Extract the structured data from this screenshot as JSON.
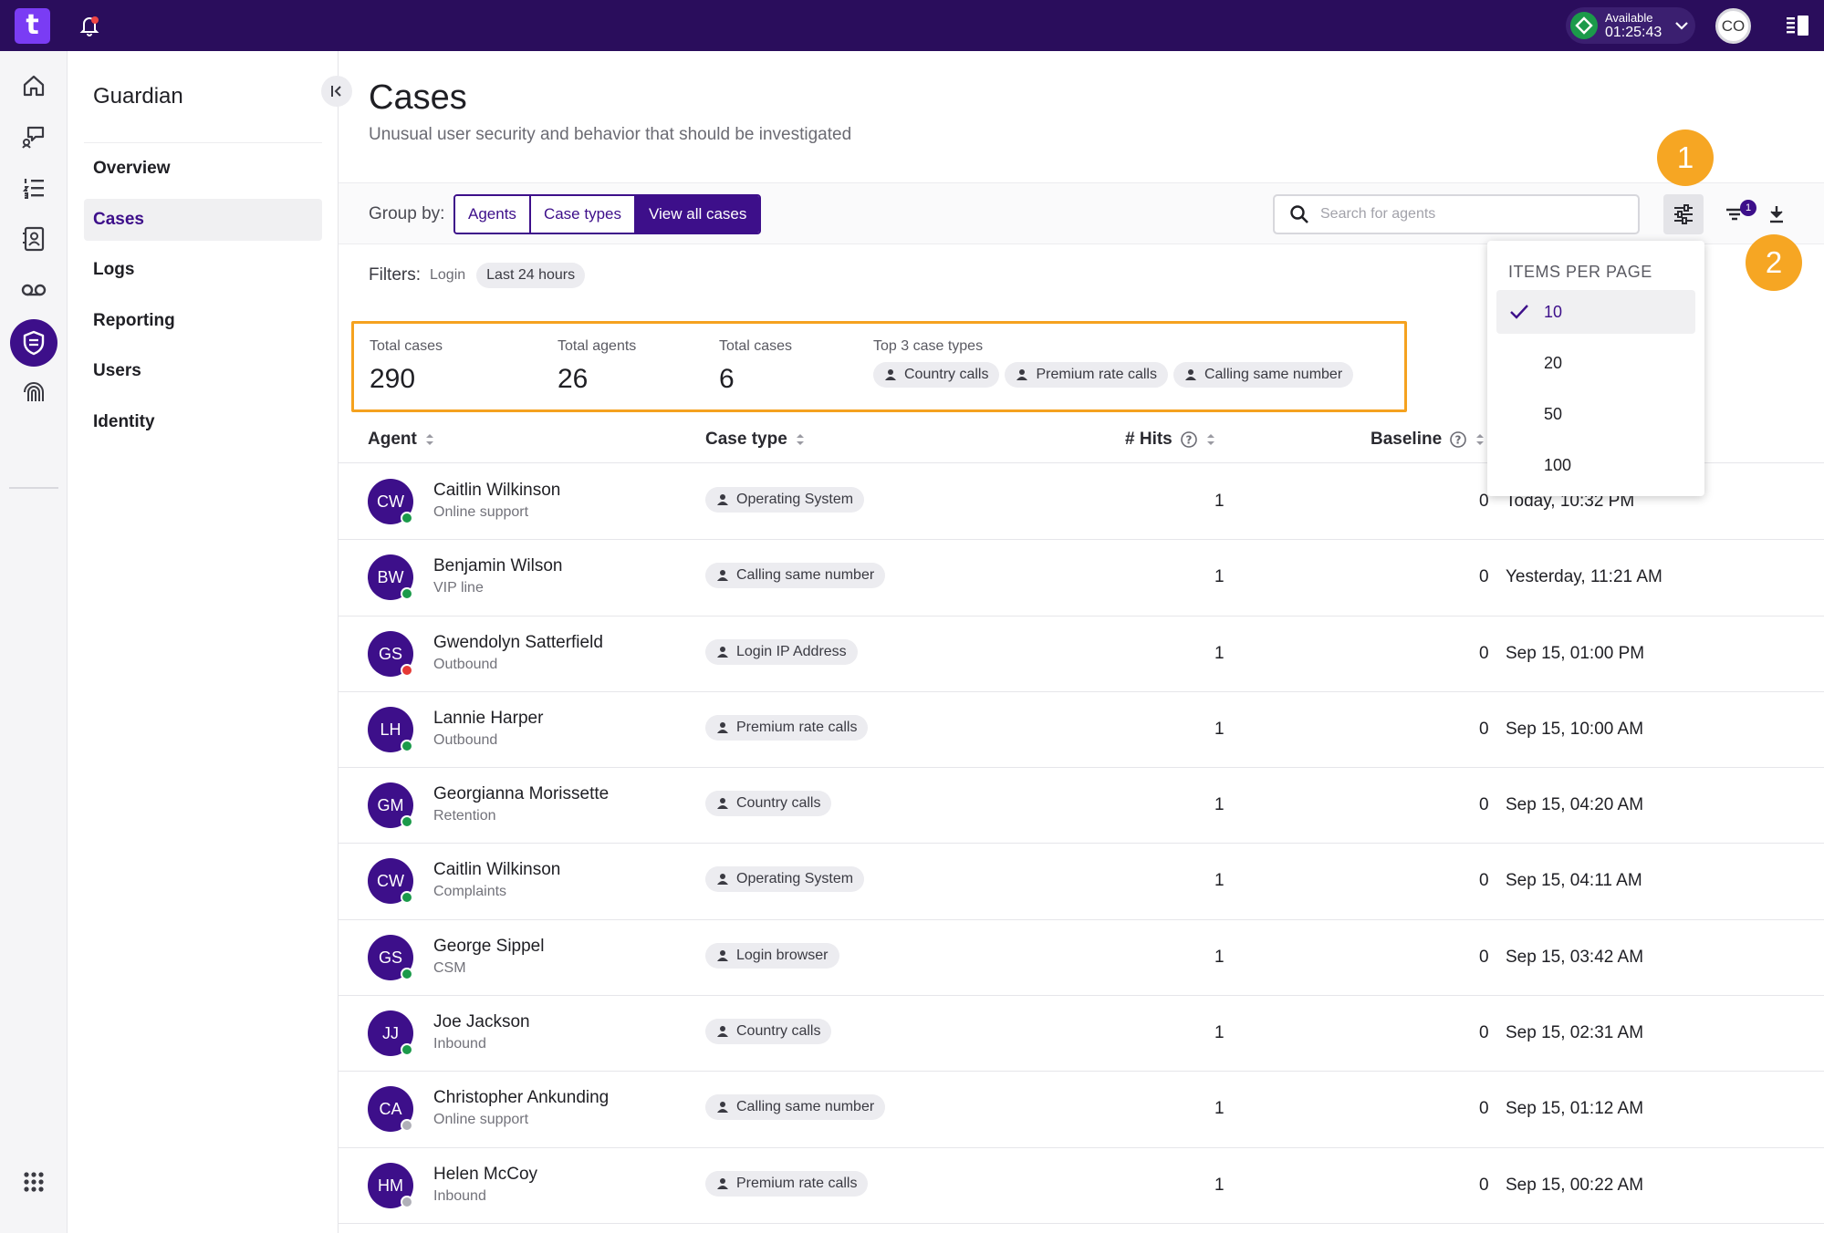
{
  "topbar": {
    "logo_text": "t",
    "status_label": "Available",
    "status_timer": "01:25:43",
    "user_initials": "CO"
  },
  "rail_icons": [
    "home-icon",
    "conversations-icon",
    "list-icon",
    "contacts-icon",
    "voicemail-icon",
    "shield-icon",
    "fingerprint-icon",
    "apps-grid-icon"
  ],
  "sidebar": {
    "title": "Guardian",
    "items": [
      {
        "label": "Overview",
        "active": false
      },
      {
        "label": "Cases",
        "active": true
      },
      {
        "label": "Logs",
        "active": false
      },
      {
        "label": "Reporting",
        "active": false
      },
      {
        "label": "Users",
        "active": false
      },
      {
        "label": "Identity",
        "active": false
      }
    ]
  },
  "page": {
    "title": "Cases",
    "subtitle": "Unusual user security and behavior that should be investigated"
  },
  "toolbar": {
    "group_by_label": "Group by:",
    "group_options": [
      "Agents",
      "Case types",
      "View all cases"
    ],
    "selected_group": "View all cases",
    "search_placeholder": "Search for agents",
    "filter_badge": "1"
  },
  "filters": {
    "label": "Filters:",
    "key": "Login",
    "chip": "Last 24 hours"
  },
  "summary": {
    "total_cases_label": "Total cases",
    "total_cases_value": "290",
    "total_agents_label": "Total agents",
    "total_agents_value": "26",
    "total_cases2_label": "Total cases",
    "total_cases2_value": "6",
    "top3_label": "Top 3 case types",
    "top3": [
      "Country calls",
      "Premium rate calls",
      "Calling same number"
    ]
  },
  "table": {
    "columns": {
      "agent": "Agent",
      "case_type": "Case type",
      "hits": "# Hits",
      "baseline": "Baseline"
    },
    "rows": [
      {
        "initials": "CW",
        "name": "Caitlin Wilkinson",
        "team": "Online support",
        "status": "#1b9a4a",
        "case_type": "Operating System",
        "hits": "1",
        "baseline": "0",
        "date": "Today, 10:32 PM"
      },
      {
        "initials": "BW",
        "name": "Benjamin Wilson",
        "team": "VIP line",
        "status": "#1b9a4a",
        "case_type": "Calling same number",
        "hits": "1",
        "baseline": "0",
        "date": "Yesterday, 11:21 AM"
      },
      {
        "initials": "GS",
        "name": "Gwendolyn Satterfield",
        "team": "Outbound",
        "status": "#e53935",
        "case_type": "Login IP Address",
        "hits": "1",
        "baseline": "0",
        "date": "Sep 15, 01:00 PM"
      },
      {
        "initials": "LH",
        "name": "Lannie Harper",
        "team": "Outbound",
        "status": "#1b9a4a",
        "case_type": "Premium rate calls",
        "hits": "1",
        "baseline": "0",
        "date": "Sep 15, 10:00 AM"
      },
      {
        "initials": "GM",
        "name": "Georgianna Morissette",
        "team": "Retention",
        "status": "#1b9a4a",
        "case_type": "Country calls",
        "hits": "1",
        "baseline": "0",
        "date": "Sep 15, 04:20 AM"
      },
      {
        "initials": "CW",
        "name": "Caitlin Wilkinson",
        "team": "Complaints",
        "status": "#1b9a4a",
        "case_type": "Operating System",
        "hits": "1",
        "baseline": "0",
        "date": "Sep 15, 04:11 AM"
      },
      {
        "initials": "GS",
        "name": "George Sippel",
        "team": "CSM",
        "status": "#1b9a4a",
        "case_type": "Login browser",
        "hits": "1",
        "baseline": "0",
        "date": "Sep 15, 03:42 AM"
      },
      {
        "initials": "JJ",
        "name": "Joe Jackson",
        "team": "Inbound",
        "status": "#1b9a4a",
        "case_type": "Country calls",
        "hits": "1",
        "baseline": "0",
        "date": "Sep 15, 02:31 AM"
      },
      {
        "initials": "CA",
        "name": "Christopher Ankunding",
        "team": "Online support",
        "status": "#b0b0b8",
        "case_type": "Calling same number",
        "hits": "1",
        "baseline": "0",
        "date": "Sep 15, 01:12 AM"
      },
      {
        "initials": "HM",
        "name": "Helen McCoy",
        "team": "Inbound",
        "status": "#b0b0b8",
        "case_type": "Premium rate calls",
        "hits": "1",
        "baseline": "0",
        "date": "Sep 15, 00:22 AM"
      }
    ]
  },
  "dropdown": {
    "title": "ITEMS PER PAGE",
    "options": [
      "10",
      "20",
      "50",
      "100"
    ],
    "selected": "10"
  },
  "markers": [
    "1",
    "2"
  ],
  "colors": {
    "brand": "#2a0d5c",
    "accent": "#3d0f8a",
    "highlight": "#f5a21f",
    "status_available": "#1b9a4a"
  }
}
